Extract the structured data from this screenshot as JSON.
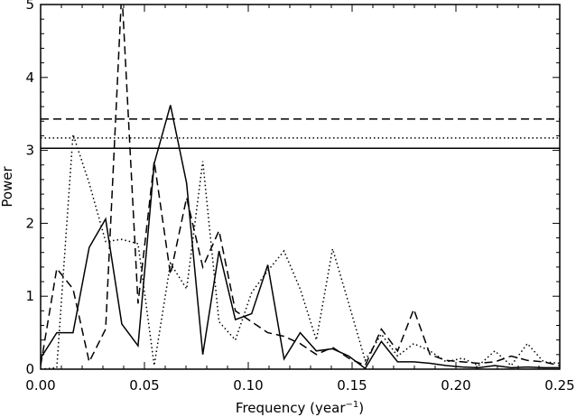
{
  "chart_data": {
    "type": "line",
    "xlabel": "Frequency (year",
    "xlabel_sup": "−1",
    "xlabel_close": ")",
    "ylabel": "Power",
    "xlim": [
      0.0,
      0.25
    ],
    "ylim": [
      0.0,
      5.0
    ],
    "x_ticks": [
      "0.00",
      "0.05",
      "0.10",
      "0.15",
      "0.20",
      "0.25"
    ],
    "y_ticks": [
      "0",
      "1",
      "2",
      "3",
      "4",
      "5"
    ],
    "grid": false,
    "series": [
      {
        "style": "solid",
        "x": [
          0.0,
          0.0078,
          0.0156,
          0.0234,
          0.0313,
          0.0391,
          0.0469,
          0.0547,
          0.0625,
          0.0703,
          0.0781,
          0.0859,
          0.0938,
          0.1016,
          0.1094,
          0.1172,
          0.125,
          0.1328,
          0.1406,
          0.1484,
          0.1563,
          0.1641,
          0.1719,
          0.1797,
          0.1875,
          0.1953,
          0.2031,
          0.2109,
          0.2188,
          0.2266,
          0.2344,
          0.2422,
          0.25
        ],
        "y": [
          0.15,
          0.5,
          0.5,
          1.67,
          2.06,
          0.62,
          0.32,
          2.82,
          3.62,
          2.55,
          0.2,
          1.62,
          0.68,
          0.76,
          1.43,
          0.14,
          0.5,
          0.25,
          0.28,
          0.18,
          0.01,
          0.38,
          0.1,
          0.1,
          0.08,
          0.05,
          0.03,
          0.02,
          0.05,
          0.02,
          0.03,
          0.02,
          0.02
        ]
      },
      {
        "style": "dashed",
        "x": [
          0.0,
          0.0078,
          0.0156,
          0.0234,
          0.0313,
          0.0391,
          0.0469,
          0.0547,
          0.0625,
          0.0703,
          0.0781,
          0.0859,
          0.0938,
          0.1016,
          0.1094,
          0.1172,
          0.125,
          0.1328,
          0.1406,
          0.1484,
          0.1563,
          0.1641,
          0.1719,
          0.1797,
          0.1875,
          0.1953,
          0.2031,
          0.2109,
          0.2188,
          0.2266,
          0.2344,
          0.2422,
          0.25
        ],
        "y": [
          0.05,
          1.38,
          1.1,
          0.1,
          0.55,
          5.2,
          0.9,
          2.85,
          1.3,
          2.35,
          1.4,
          1.9,
          0.8,
          0.65,
          0.5,
          0.45,
          0.35,
          0.2,
          0.3,
          0.15,
          0.05,
          0.55,
          0.25,
          0.82,
          0.2,
          0.12,
          0.1,
          0.08,
          0.1,
          0.18,
          0.12,
          0.1,
          0.05
        ]
      },
      {
        "style": "dotted",
        "x": [
          0.0,
          0.0078,
          0.0156,
          0.0234,
          0.0313,
          0.0391,
          0.0469,
          0.0547,
          0.0625,
          0.0703,
          0.0781,
          0.0859,
          0.0938,
          0.1016,
          0.1094,
          0.1172,
          0.125,
          0.1328,
          0.1406,
          0.1484,
          0.1563,
          0.1641,
          0.1719,
          0.1797,
          0.1875,
          0.1953,
          0.2031,
          0.2109,
          0.2188,
          0.2266,
          0.2344,
          0.2422,
          0.25
        ],
        "y": [
          0.0,
          0.02,
          3.22,
          2.55,
          1.75,
          1.78,
          1.72,
          0.05,
          1.45,
          1.1,
          2.85,
          0.65,
          0.4,
          1.05,
          1.35,
          1.62,
          1.1,
          0.4,
          1.65,
          0.9,
          0.12,
          0.48,
          0.18,
          0.35,
          0.25,
          0.1,
          0.15,
          0.05,
          0.25,
          0.05,
          0.35,
          0.1,
          0.08
        ]
      }
    ],
    "thresholds": [
      {
        "style": "solid",
        "y": 3.03
      },
      {
        "style": "dashed",
        "y": 3.43
      },
      {
        "style": "dotted",
        "y": 3.17
      }
    ]
  }
}
